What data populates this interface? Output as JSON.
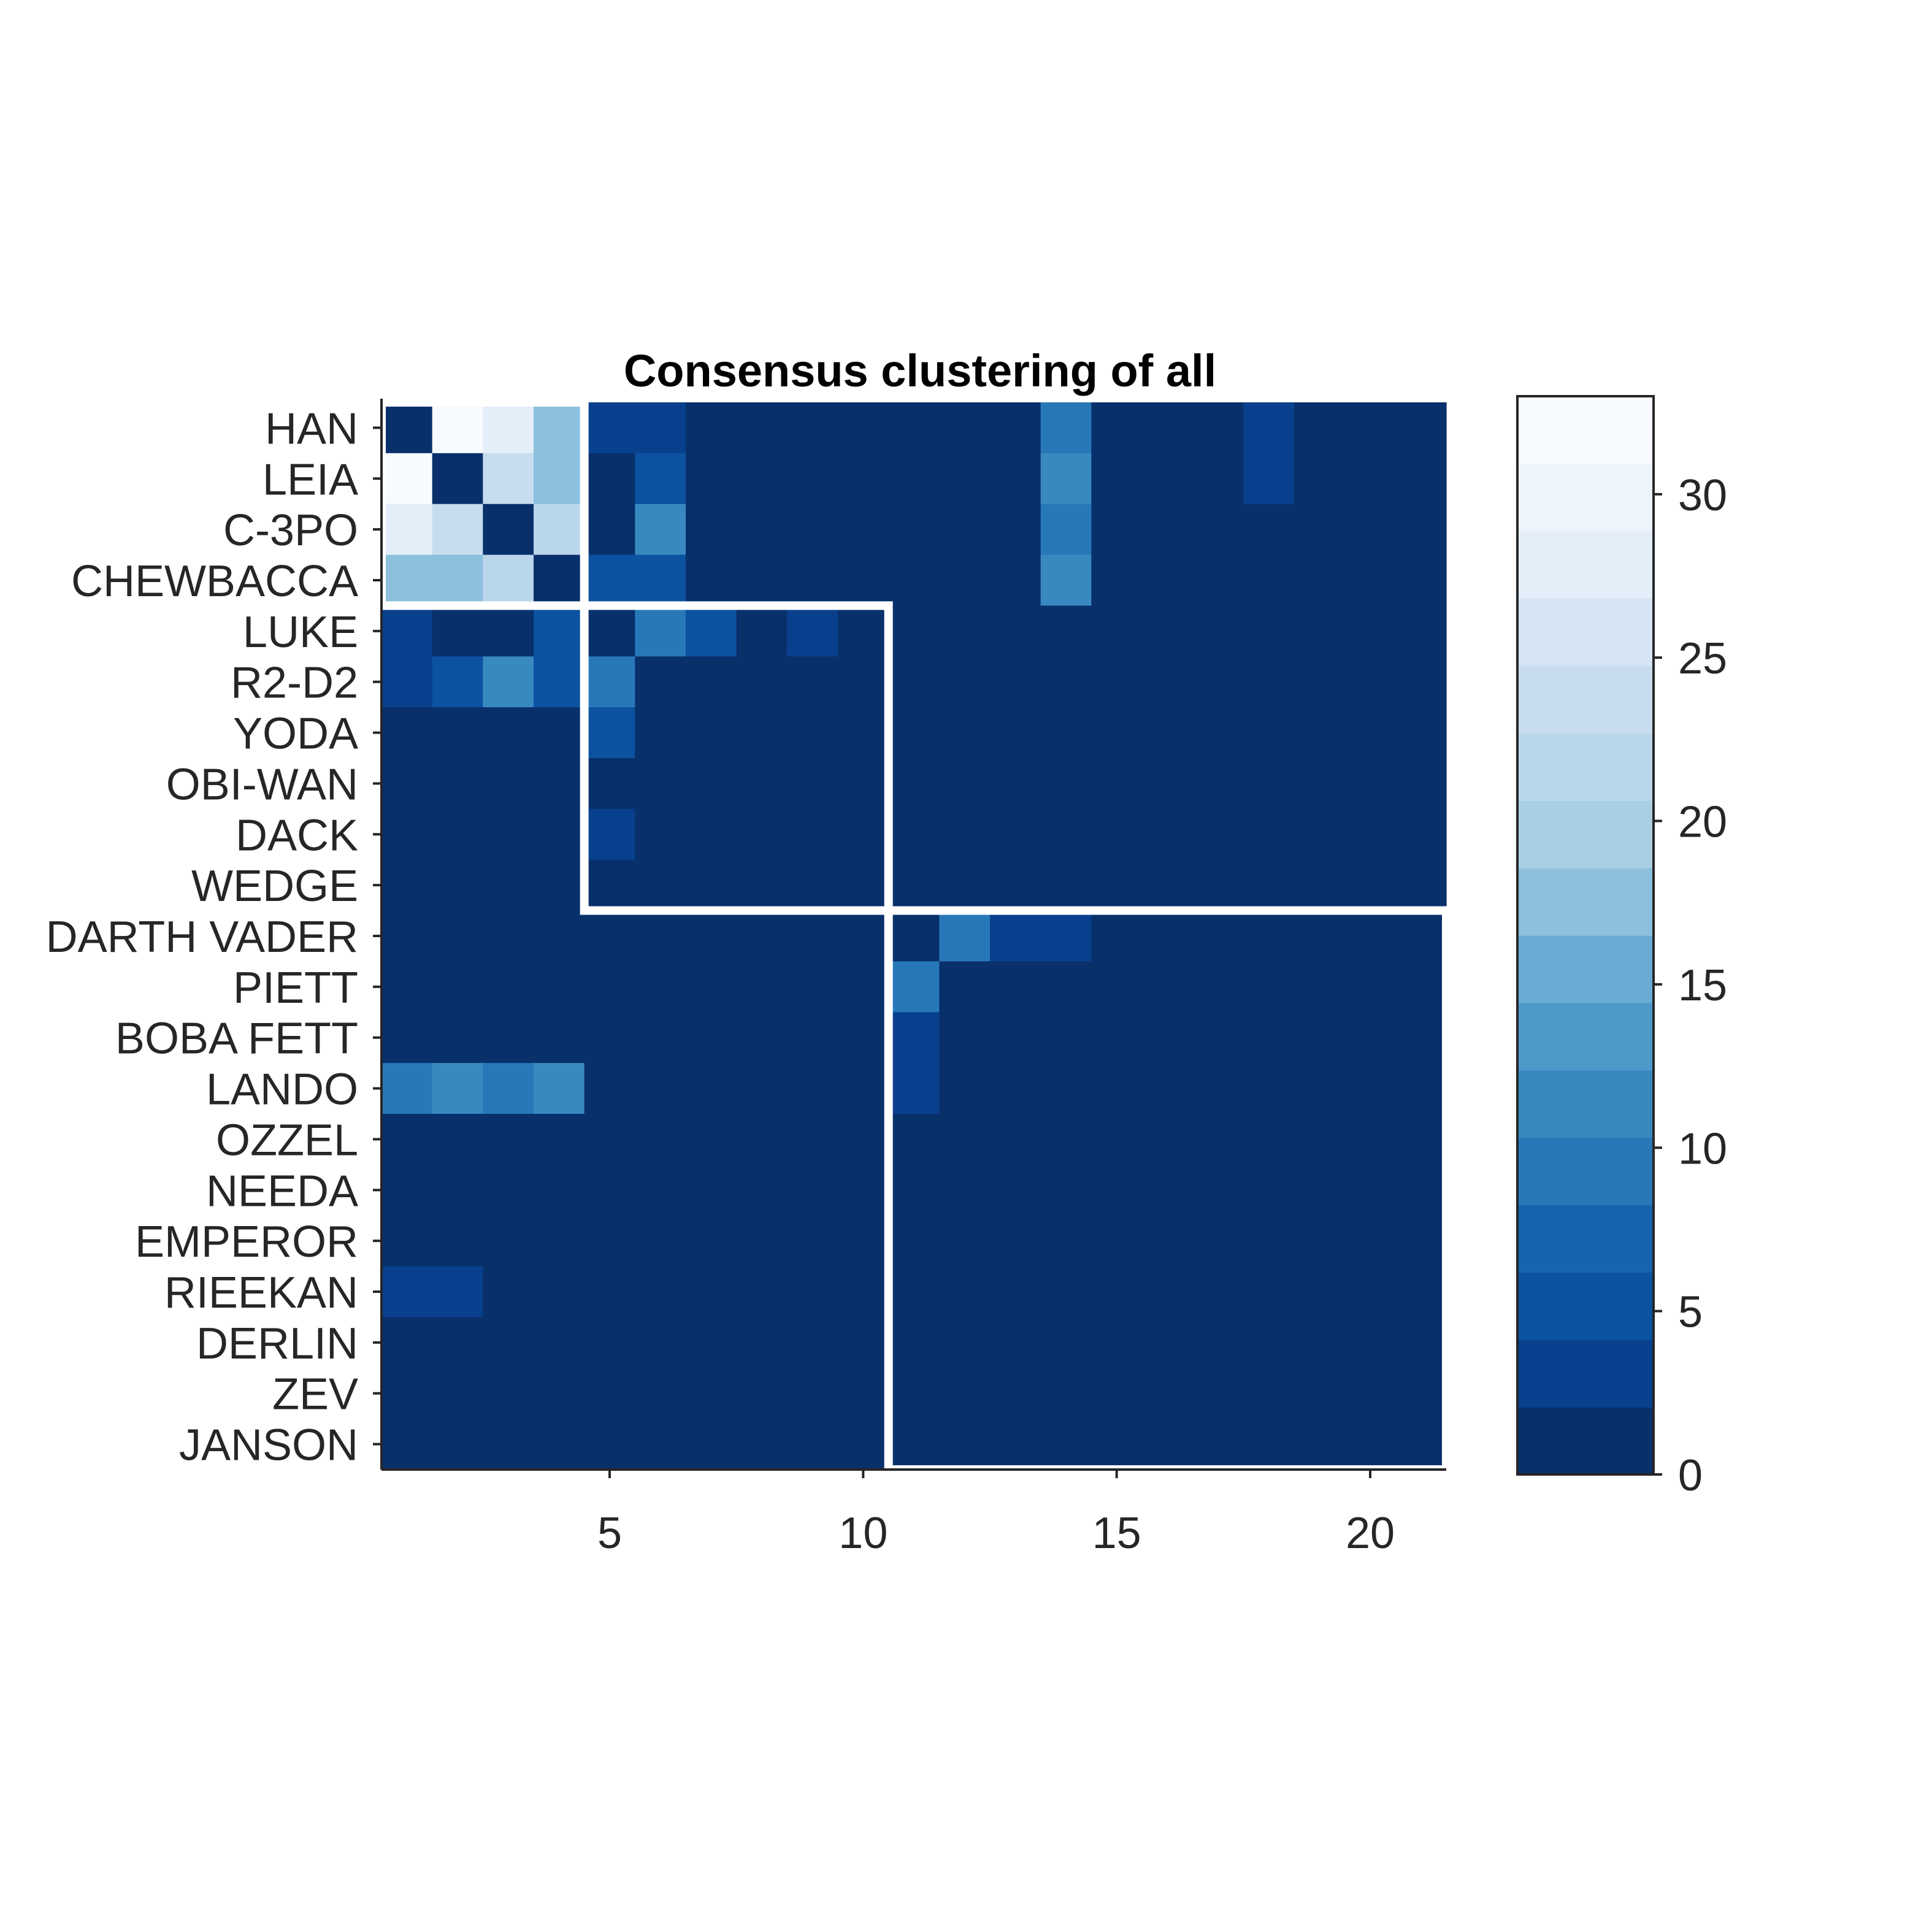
{
  "chart_data": {
    "type": "heatmap",
    "title": "Consensus clustering of all",
    "xlabel": "",
    "ylabel": "",
    "row_labels": [
      "HAN",
      "LEIA",
      "C-3PO",
      "CHEWBACCA",
      "LUKE",
      "R2-D2",
      "YODA",
      "OBI-WAN",
      "DACK",
      "WEDGE",
      "DARTH VADER",
      "PIETT",
      "BOBA FETT",
      "LANDO",
      "OZZEL",
      "NEEDA",
      "EMPEROR",
      "RIEEKAN",
      "DERLIN",
      "ZEV",
      "JANSON"
    ],
    "x_ticks": [
      5,
      10,
      15,
      20
    ],
    "x_tick_labels": [
      "5",
      "10",
      "15",
      "20"
    ],
    "xlim": [
      0.5,
      21.5
    ],
    "colorbar": {
      "min": 0,
      "max": 33,
      "ticks": [
        0,
        5,
        10,
        15,
        20,
        25,
        30
      ],
      "tick_labels": [
        "0",
        "5",
        "10",
        "15",
        "20",
        "25",
        "30"
      ],
      "colors": [
        "#08306b",
        "#08408e",
        "#0b52a0",
        "#1664ae",
        "#2878b8",
        "#3989c1",
        "#4d99ca",
        "#68acd5",
        "#8cc0dd",
        "#a9cfe5",
        "#bad6eb",
        "#c8dcf0",
        "#d5e4f3",
        "#e3eef9",
        "#edf4fc",
        "#f7fbff"
      ]
    },
    "values": [
      [
        0,
        33,
        28,
        18,
        3,
        3,
        0,
        0,
        0,
        0,
        0,
        0,
        0,
        9,
        0,
        0,
        0,
        3,
        0,
        0,
        0
      ],
      [
        33,
        0,
        24,
        18,
        0,
        6,
        0,
        0,
        0,
        0,
        0,
        0,
        0,
        12,
        0,
        0,
        0,
        3,
        0,
        0,
        0
      ],
      [
        28,
        24,
        0,
        22,
        0,
        12,
        0,
        0,
        0,
        0,
        0,
        0,
        0,
        9,
        0,
        0,
        0,
        0,
        0,
        0,
        0
      ],
      [
        18,
        18,
        22,
        0,
        6,
        6,
        0,
        0,
        0,
        0,
        0,
        0,
        0,
        12,
        0,
        0,
        0,
        0,
        0,
        0,
        0
      ],
      [
        3,
        0,
        0,
        6,
        0,
        9,
        6,
        0,
        3,
        0,
        0,
        0,
        0,
        0,
        0,
        0,
        0,
        0,
        0,
        0,
        0
      ],
      [
        3,
        6,
        12,
        6,
        9,
        0,
        0,
        0,
        0,
        0,
        0,
        0,
        0,
        0,
        0,
        0,
        0,
        0,
        0,
        0,
        0
      ],
      [
        0,
        0,
        0,
        0,
        6,
        0,
        0,
        0,
        0,
        0,
        0,
        0,
        0,
        0,
        0,
        0,
        0,
        0,
        0,
        0,
        0
      ],
      [
        0,
        0,
        0,
        0,
        0,
        0,
        0,
        0,
        0,
        0,
        0,
        0,
        0,
        0,
        0,
        0,
        0,
        0,
        0,
        0,
        0
      ],
      [
        0,
        0,
        0,
        0,
        3,
        0,
        0,
        0,
        0,
        0,
        0,
        0,
        0,
        0,
        0,
        0,
        0,
        0,
        0,
        0,
        0
      ],
      [
        0,
        0,
        0,
        0,
        0,
        0,
        0,
        0,
        0,
        0,
        0,
        0,
        0,
        0,
        0,
        0,
        0,
        0,
        0,
        0,
        0
      ],
      [
        0,
        0,
        0,
        0,
        0,
        0,
        0,
        0,
        0,
        0,
        0,
        9,
        3,
        3,
        0,
        0,
        0,
        0,
        0,
        0,
        0
      ],
      [
        0,
        0,
        0,
        0,
        0,
        0,
        0,
        0,
        0,
        0,
        9,
        0,
        0,
        0,
        0,
        0,
        0,
        0,
        0,
        0,
        0
      ],
      [
        0,
        0,
        0,
        0,
        0,
        0,
        0,
        0,
        0,
        0,
        3,
        0,
        0,
        0,
        0,
        0,
        0,
        0,
        0,
        0,
        0
      ],
      [
        9,
        12,
        9,
        12,
        0,
        0,
        0,
        0,
        0,
        0,
        3,
        0,
        0,
        0,
        0,
        0,
        0,
        0,
        0,
        0,
        0
      ],
      [
        0,
        0,
        0,
        0,
        0,
        0,
        0,
        0,
        0,
        0,
        0,
        0,
        0,
        0,
        0,
        0,
        0,
        0,
        0,
        0,
        0
      ],
      [
        0,
        0,
        0,
        0,
        0,
        0,
        0,
        0,
        0,
        0,
        0,
        0,
        0,
        0,
        0,
        0,
        0,
        0,
        0,
        0,
        0
      ],
      [
        0,
        0,
        0,
        0,
        0,
        0,
        0,
        0,
        0,
        0,
        0,
        0,
        0,
        0,
        0,
        0,
        0,
        0,
        0,
        0,
        0
      ],
      [
        3,
        3,
        0,
        0,
        0,
        0,
        0,
        0,
        0,
        0,
        0,
        0,
        0,
        0,
        0,
        0,
        0,
        0,
        0,
        0,
        0
      ],
      [
        0,
        0,
        0,
        0,
        0,
        0,
        0,
        0,
        0,
        0,
        0,
        0,
        0,
        0,
        0,
        0,
        0,
        0,
        0,
        0,
        0
      ],
      [
        0,
        0,
        0,
        0,
        0,
        0,
        0,
        0,
        0,
        0,
        0,
        0,
        0,
        0,
        0,
        0,
        0,
        0,
        0,
        0,
        0
      ],
      [
        0,
        0,
        0,
        0,
        0,
        0,
        0,
        0,
        0,
        0,
        0,
        0,
        0,
        0,
        0,
        0,
        0,
        0,
        0,
        0,
        0
      ]
    ],
    "clusters": [
      [
        1,
        4
      ],
      [
        5,
        10
      ],
      [
        11,
        21
      ]
    ],
    "cluster_outline_color": "#ffffff",
    "grid": false
  }
}
